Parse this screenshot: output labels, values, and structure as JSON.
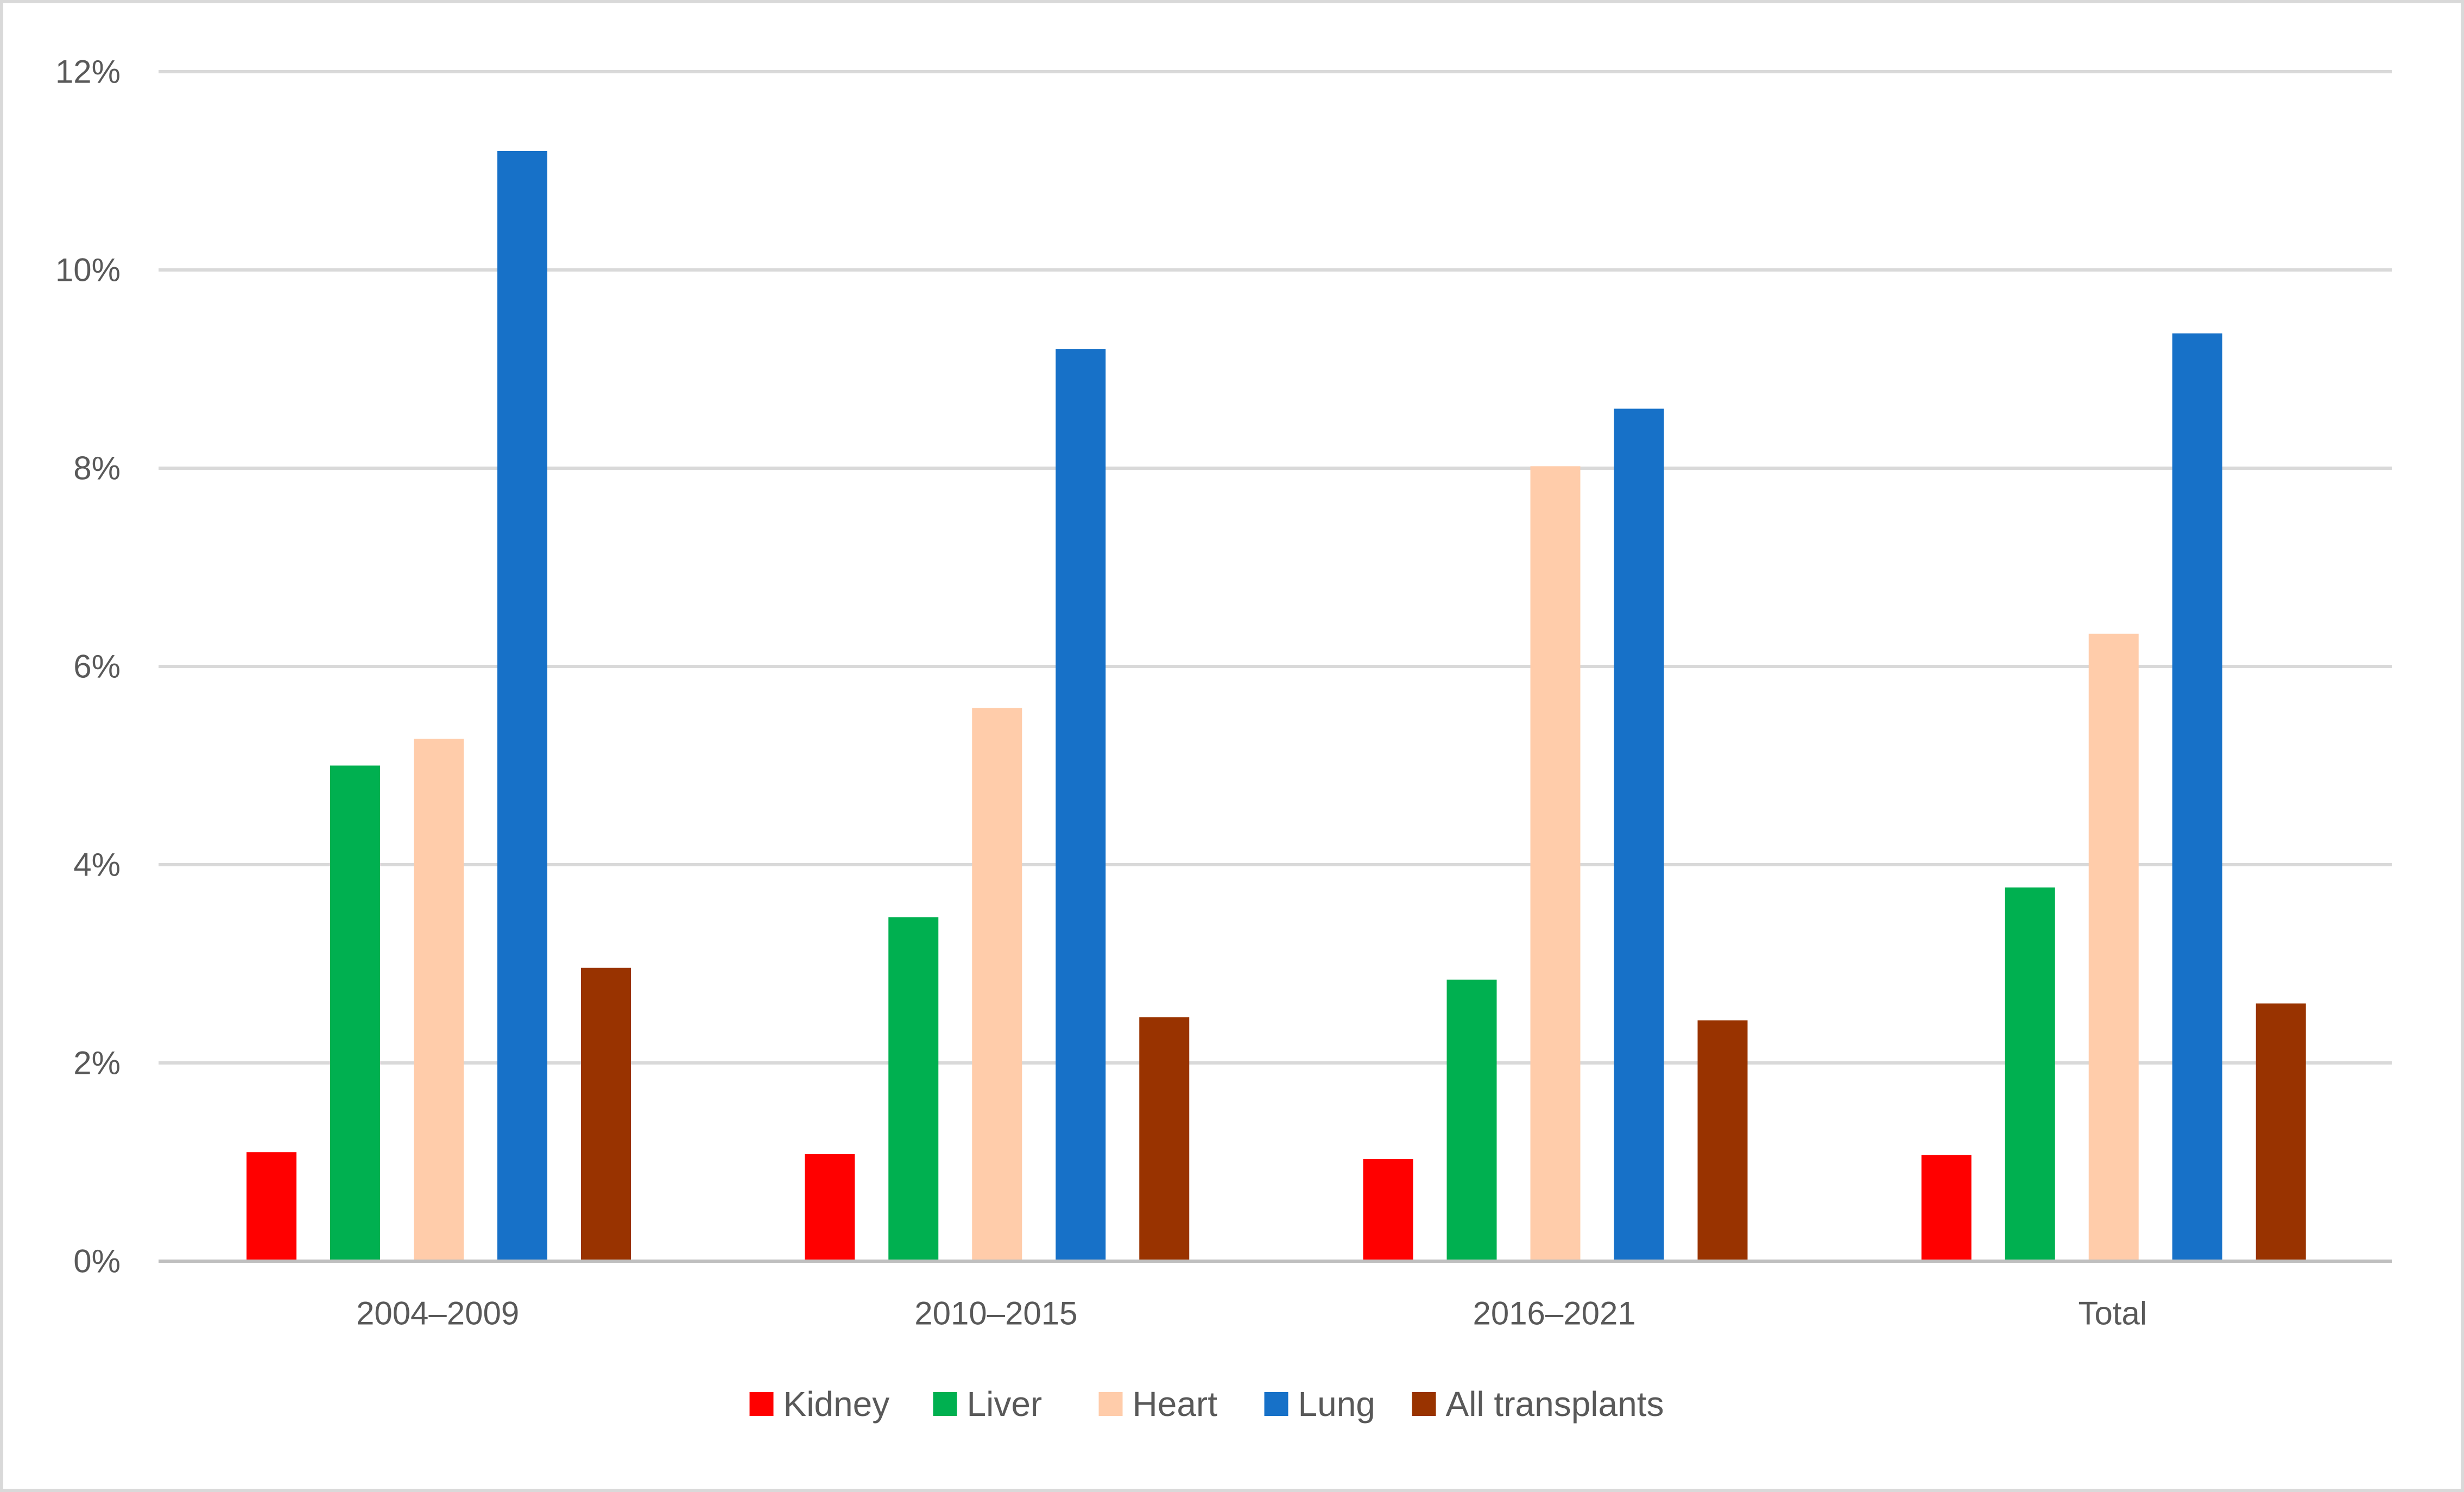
{
  "chart_data": {
    "type": "bar",
    "title": "",
    "xlabel": "",
    "ylabel": "",
    "categories": [
      "2004–2009",
      "2010–2015",
      "2016–2021",
      "Total"
    ],
    "series": [
      {
        "name": "Kidney",
        "color": "#FF0000",
        "values": [
          1.1,
          1.08,
          1.03,
          1.07
        ]
      },
      {
        "name": "Liver",
        "color": "#00B050",
        "values": [
          5.0,
          3.47,
          2.84,
          3.77
        ]
      },
      {
        "name": "Heart",
        "color": "#FFCCAA",
        "values": [
          5.27,
          5.58,
          8.02,
          6.33
        ]
      },
      {
        "name": "Lung",
        "color": "#1771C8",
        "values": [
          11.2,
          9.2,
          8.6,
          9.36
        ]
      },
      {
        "name": "All transplants",
        "color": "#993300",
        "values": [
          2.96,
          2.46,
          2.43,
          2.6
        ]
      }
    ],
    "ylim": [
      0,
      12
    ],
    "yticks": [
      0,
      2,
      4,
      6,
      8,
      10,
      12
    ],
    "ytick_labels": [
      "0%",
      "2%",
      "4%",
      "6%",
      "8%",
      "10%",
      "12%"
    ],
    "grid": true,
    "legend": "bottom",
    "axis_color": "#BFBFBF",
    "grid_color": "#D9D9D9",
    "text_color": "#595959",
    "border_color": "#D9D9D9"
  }
}
